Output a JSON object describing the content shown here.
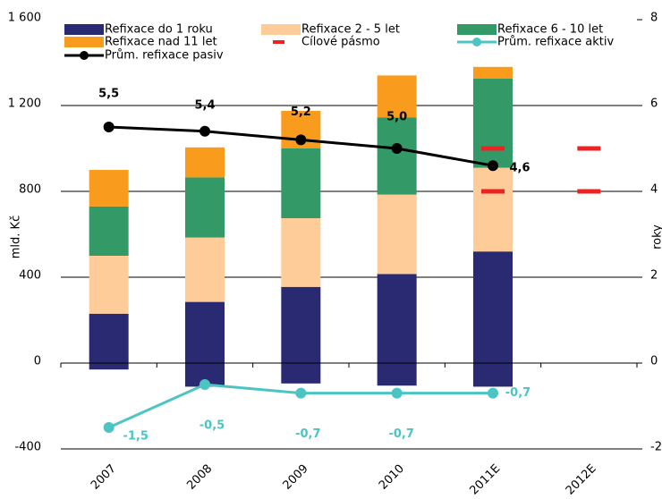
{
  "chart_data": {
    "type": "bar",
    "categories": [
      "2007",
      "2008",
      "2009",
      "2010",
      "2011E",
      "2012E"
    ],
    "series": [
      {
        "name": "Refixace do 1 roku",
        "color": "#2a2a72",
        "values": [
          230,
          285,
          355,
          415,
          520,
          null
        ]
      },
      {
        "name": "Refixace 2 - 5 let",
        "color": "#fdcc99",
        "values": [
          270,
          300,
          320,
          370,
          390,
          null
        ]
      },
      {
        "name": "Refixace 6 - 10 let",
        "color": "#339966",
        "values": [
          230,
          280,
          325,
          360,
          415,
          null
        ]
      },
      {
        "name": "Refixace nad 11 let",
        "color": "#f99b1c",
        "values": [
          170,
          140,
          175,
          195,
          55,
          null
        ]
      },
      {
        "color": "#2a2a72",
        "values": [
          -30,
          -110,
          -95,
          -105,
          -110,
          null
        ]
      }
    ],
    "lines": [
      {
        "name": "Prům. refixace aktiv",
        "color": "#4cc4c4",
        "axis": "y2",
        "values": [
          -1.5,
          -0.5,
          -0.7,
          -0.7,
          -0.7,
          null
        ],
        "value_labels": [
          "-1,5",
          "-0,5",
          "-0,7",
          "-0,7",
          "-0,7",
          null
        ]
      },
      {
        "name": "Prům. refixace pasiv",
        "color": "#000000",
        "axis": "y2",
        "values": [
          5.5,
          5.4,
          5.2,
          5.0,
          4.6,
          null
        ],
        "value_labels": [
          "5,5",
          "5,4",
          "5,2",
          "5,0",
          "4,6",
          null
        ]
      }
    ],
    "target": {
      "name": "Cílové pásmo",
      "color": "#ee2222",
      "axis": "y2",
      "low": [
        null,
        null,
        null,
        null,
        4,
        4
      ],
      "high": [
        null,
        null,
        null,
        null,
        5,
        5
      ]
    },
    "ylabel": "mld. Kč",
    "y2label": "roky",
    "ylim": [
      -400,
      1600
    ],
    "yticks": [
      -400,
      0,
      400,
      800,
      {
        "value": 1200,
        "label": "1 200"
      },
      {
        "value": 1600,
        "label": "1 600"
      }
    ],
    "y2lim": [
      -2,
      8
    ],
    "y2ticks": [
      -2,
      0,
      2,
      4,
      6,
      8
    ],
    "grid": true
  }
}
